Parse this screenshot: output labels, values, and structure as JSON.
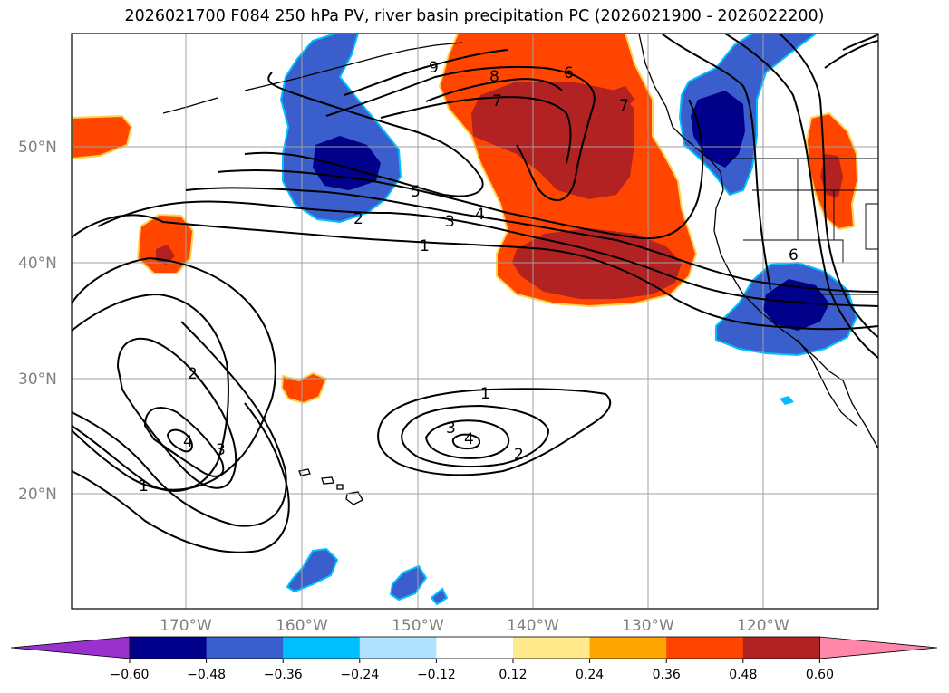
{
  "title": "2026021700 F084 250 hPa PV, river basin precipitation PC (2026021900 - 2026022200)",
  "lat_labels": [
    "50°N",
    "40°N",
    "30°N",
    "20°N"
  ],
  "lon_labels": [
    "170°W",
    "160°W",
    "150°W",
    "140°W",
    "130°W",
    "120°W"
  ],
  "contour_labels": {
    "c9": "9",
    "c8": "8",
    "c7": "7",
    "c6": "6",
    "c5": "5",
    "c4": "4",
    "c3": "3",
    "c2": "2",
    "c1": "1",
    "w2": "2",
    "w3": "3",
    "w4": "4",
    "w1": "1",
    "s1": "1",
    "s2": "2",
    "s3": "3",
    "s4": "4",
    "e6": "6",
    "e7": "7"
  },
  "colorbar": {
    "ticks": [
      "−0.60",
      "−0.48",
      "−0.36",
      "−0.24",
      "−0.12",
      "0.12",
      "0.24",
      "0.36",
      "0.48",
      "0.60"
    ],
    "colors": [
      "#9932cc",
      "#00008b",
      "#3a5fcd",
      "#00bfff",
      "#b0e2ff",
      "#ffffff",
      "#ffe98a",
      "#ffa500",
      "#ff4500",
      "#b22222",
      "#ff88aa"
    ]
  },
  "palette": {
    "strong_neg": "#00008b",
    "neg": "#3a5fcd",
    "weak_neg": "#00bfff",
    "pos": "#ff4500",
    "strong_pos": "#b22222",
    "weak_pos": "#ffe98a"
  }
}
